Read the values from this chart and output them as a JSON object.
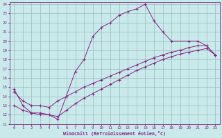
{
  "xlabel": "Windchill (Refroidissement éolien,°C)",
  "xlim": [
    -0.5,
    23.5
  ],
  "ylim": [
    11,
    24.2
  ],
  "xticks": [
    0,
    1,
    2,
    3,
    4,
    5,
    6,
    7,
    8,
    9,
    10,
    11,
    12,
    13,
    14,
    15,
    16,
    17,
    18,
    19,
    20,
    21,
    22,
    23
  ],
  "yticks": [
    11,
    12,
    13,
    14,
    15,
    16,
    17,
    18,
    19,
    20,
    21,
    22,
    23,
    24
  ],
  "bg_color": "#c8eaea",
  "line_color": "#882288",
  "grid_color": "#99bbbb",
  "line1_x": [
    0,
    1,
    2,
    3,
    4,
    5,
    7,
    8,
    9,
    10,
    11,
    12,
    13,
    14,
    15,
    16,
    17,
    18,
    20,
    21,
    22,
    23
  ],
  "line1_y": [
    14.8,
    13.0,
    12.2,
    12.0,
    12.0,
    11.5,
    16.7,
    18.0,
    20.5,
    21.5,
    22.0,
    22.8,
    23.2,
    23.5,
    24.0,
    22.2,
    21.0,
    20.0,
    20.0,
    20.0,
    19.5,
    18.5
  ],
  "line2_x": [
    0,
    1,
    2,
    3,
    4,
    5,
    6,
    7,
    8,
    9,
    10,
    11,
    12,
    13,
    14,
    15,
    16,
    17,
    18,
    19,
    20,
    21,
    22,
    23
  ],
  "line2_y": [
    13.0,
    12.5,
    12.2,
    12.2,
    12.0,
    11.8,
    12.5,
    13.2,
    13.8,
    14.3,
    14.8,
    15.3,
    15.8,
    16.3,
    16.8,
    17.2,
    17.6,
    18.0,
    18.3,
    18.6,
    18.8,
    19.0,
    19.2,
    18.5
  ],
  "line3_x": [
    0,
    1,
    2,
    3,
    4,
    5,
    6,
    7,
    8,
    9,
    10,
    11,
    12,
    13,
    14,
    15,
    16,
    17,
    18,
    19,
    20,
    21,
    22,
    23
  ],
  "line3_y": [
    14.5,
    13.5,
    13.0,
    13.0,
    12.8,
    13.5,
    14.0,
    14.5,
    15.0,
    15.4,
    15.8,
    16.2,
    16.6,
    17.0,
    17.4,
    17.8,
    18.2,
    18.5,
    18.8,
    19.0,
    19.3,
    19.5,
    19.5,
    18.5
  ]
}
